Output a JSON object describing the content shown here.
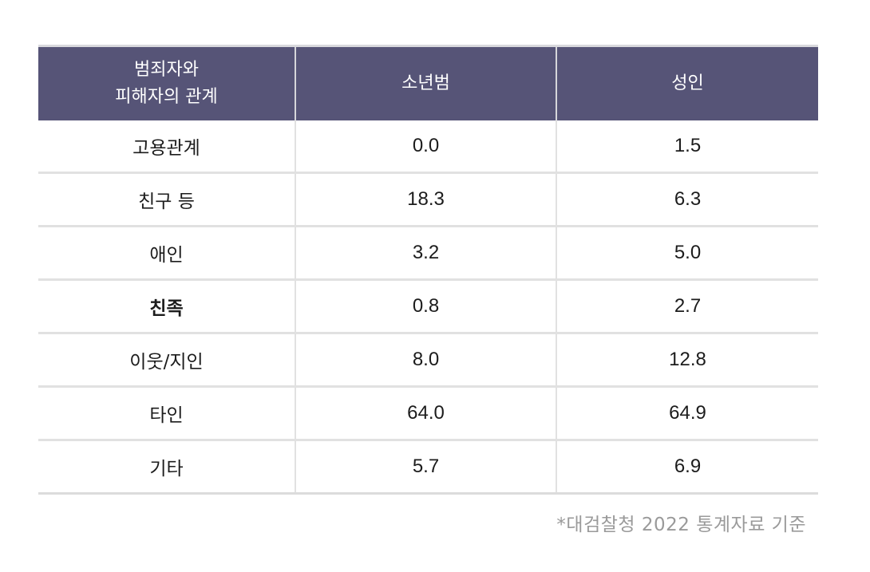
{
  "table": {
    "headers": {
      "col1_line1": "범죄자와",
      "col1_line2": "피해자의 관계",
      "col2": "소년범",
      "col3": "성인"
    },
    "rows": [
      {
        "label": "고용관계",
        "juvenile": "0.0",
        "adult": "1.5"
      },
      {
        "label": "친구 등",
        "juvenile": "18.3",
        "adult": "6.3"
      },
      {
        "label": "애인",
        "juvenile": "3.2",
        "adult": "5.0"
      },
      {
        "label": "친족",
        "juvenile": "0.8",
        "adult": "2.7"
      },
      {
        "label": "이웃/지인",
        "juvenile": "8.0",
        "adult": "12.8"
      },
      {
        "label": "타인",
        "juvenile": "64.0",
        "adult": "64.9"
      },
      {
        "label": "기타",
        "juvenile": "5.7",
        "adult": "6.9"
      }
    ]
  },
  "footnote": "*대검찰청 2022 통계자료 기준",
  "colors": {
    "header_bg": "#565477",
    "header_text": "#ffffff",
    "grid_line": "#e1e1e1"
  }
}
